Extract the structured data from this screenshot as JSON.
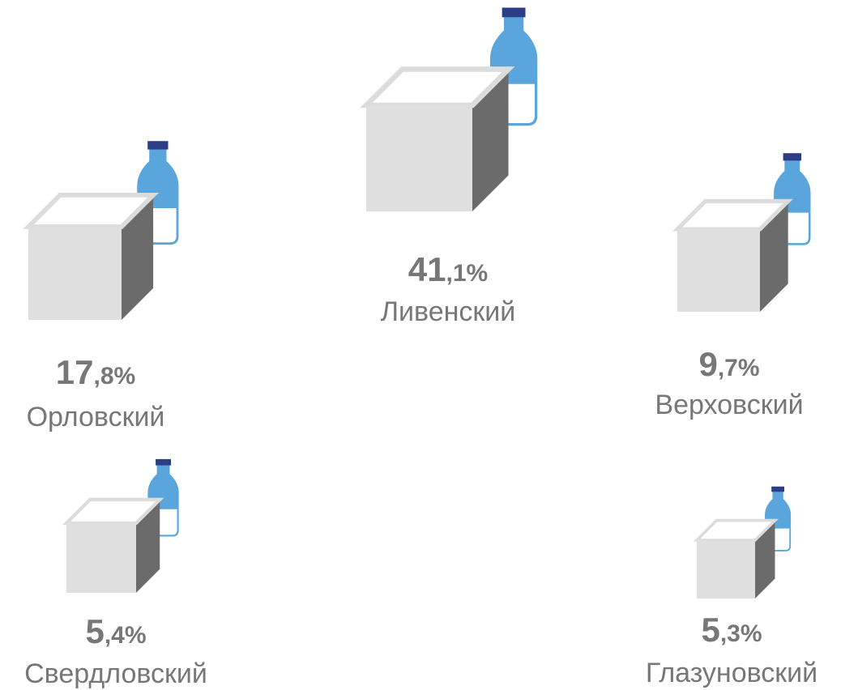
{
  "items": [
    {
      "value_int": "41",
      "value_rest": ",1%",
      "name": "Ливенский"
    },
    {
      "value_int": "17",
      "value_rest": ",8%",
      "name": "Орловский"
    },
    {
      "value_int": "9",
      "value_rest": ",7%",
      "name": "Верховский"
    },
    {
      "value_int": "5",
      "value_rest": ",4%",
      "name": "Свердловский"
    },
    {
      "value_int": "5",
      "value_rest": ",3%",
      "name": "Глазуновский"
    }
  ]
}
